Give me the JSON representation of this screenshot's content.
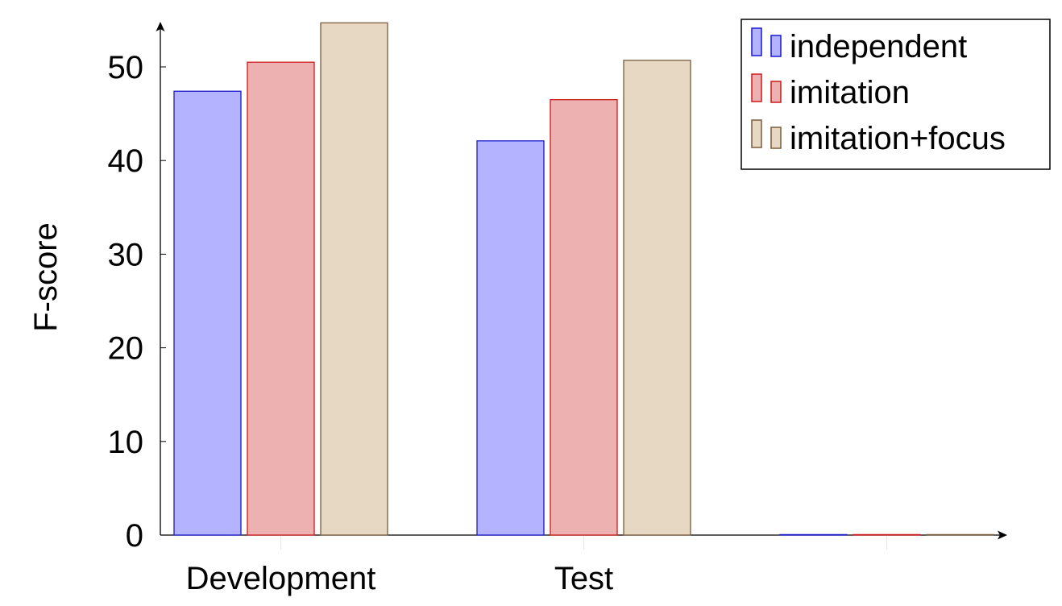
{
  "chart_data": {
    "type": "bar",
    "title": "",
    "xlabel": "",
    "ylabel": "F-score",
    "ylim": [
      0,
      55
    ],
    "yticks": [
      0,
      10,
      20,
      30,
      40,
      50
    ],
    "categories": [
      "Development",
      "Test",
      ""
    ],
    "series": [
      {
        "name": "independent",
        "values": [
          47.4,
          42.1,
          0
        ],
        "fill": "#b3b3ff",
        "stroke": "#1a1acc"
      },
      {
        "name": "imitation",
        "values": [
          50.5,
          46.5,
          0
        ],
        "fill": "#edb1b1",
        "stroke": "#cc1a1a"
      },
      {
        "name": "imitation+focus",
        "values": [
          54.7,
          50.7,
          0
        ],
        "fill": "#e7d8c4",
        "stroke": "#7a5c3d"
      }
    ],
    "grid": false,
    "legend_position": "top-right"
  }
}
